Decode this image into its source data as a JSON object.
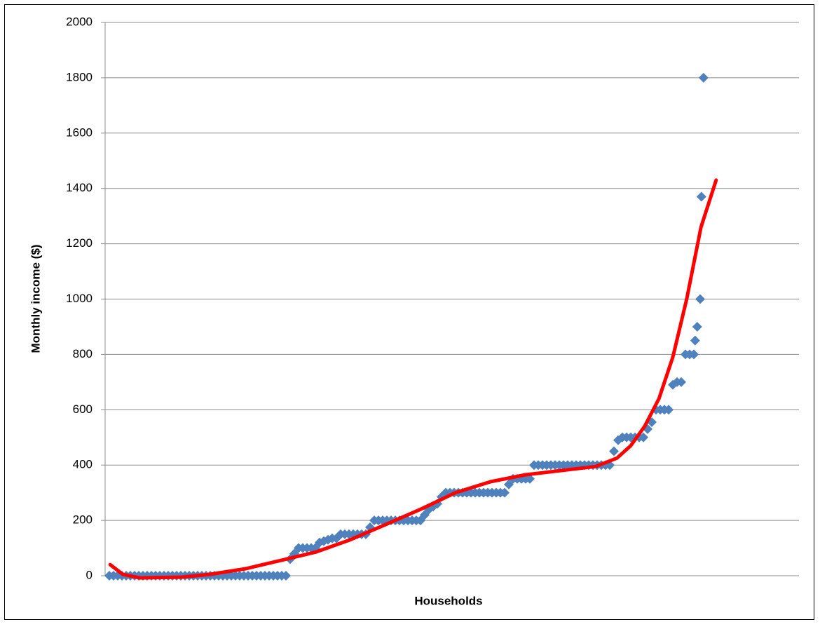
{
  "chart_data": {
    "type": "scatter",
    "ylabel": "Monthly income ($)",
    "xlabel": "Households",
    "xlim": [
      0,
      165
    ],
    "ylim": [
      0,
      2000
    ],
    "yticks": [
      0,
      200,
      400,
      600,
      800,
      1000,
      1200,
      1400,
      1600,
      1800,
      2000
    ],
    "grid": true,
    "series": [
      {
        "type": "scatter",
        "marker": "diamond",
        "color": "#4f81bd",
        "x": [
          1,
          2,
          3,
          4,
          5,
          6,
          7,
          8,
          9,
          10,
          11,
          12,
          13,
          14,
          15,
          16,
          17,
          18,
          19,
          20,
          21,
          22,
          23,
          24,
          25,
          26,
          27,
          28,
          29,
          30,
          31,
          32,
          33,
          34,
          35,
          36,
          37,
          38,
          39,
          40,
          41,
          42,
          43,
          44,
          45,
          46,
          47,
          48,
          49,
          50,
          51,
          52,
          53,
          54,
          55,
          56,
          57,
          58,
          59,
          60,
          61,
          62,
          63,
          64,
          65,
          66,
          67,
          68,
          69,
          70,
          71,
          72,
          73,
          74,
          75,
          76,
          77,
          78,
          79,
          80,
          81,
          82,
          83,
          84,
          85,
          86,
          87,
          88,
          89,
          90,
          91,
          92,
          93,
          94,
          95,
          96,
          97,
          98,
          99,
          100,
          101,
          102,
          103,
          104,
          105,
          106,
          107,
          108,
          109,
          110,
          111,
          112,
          113,
          114,
          115,
          116,
          117,
          118,
          119,
          120,
          121,
          122,
          123,
          124,
          125,
          126,
          127,
          128,
          129,
          130,
          131,
          132,
          133,
          134,
          135,
          136,
          137,
          138,
          139,
          140,
          140.3,
          140.8,
          141.5,
          141.8,
          142.3
        ],
        "values": [
          0,
          0,
          0,
          0,
          0,
          0,
          0,
          0,
          0,
          0,
          0,
          0,
          0,
          0,
          0,
          0,
          0,
          0,
          0,
          0,
          0,
          0,
          0,
          0,
          0,
          0,
          0,
          0,
          0,
          0,
          0,
          0,
          0,
          0,
          0,
          0,
          0,
          0,
          0,
          0,
          0,
          0,
          0,
          60,
          80,
          100,
          100,
          100,
          100,
          100,
          120,
          125,
          130,
          135,
          135,
          150,
          150,
          150,
          150,
          150,
          150,
          150,
          175,
          200,
          200,
          200,
          200,
          200,
          200,
          200,
          200,
          200,
          200,
          200,
          200,
          220,
          240,
          250,
          260,
          285,
          300,
          300,
          300,
          300,
          300,
          300,
          300,
          300,
          300,
          300,
          300,
          300,
          300,
          300,
          300,
          330,
          350,
          350,
          350,
          350,
          350,
          400,
          400,
          400,
          400,
          400,
          400,
          400,
          400,
          400,
          400,
          400,
          400,
          400,
          400,
          400,
          400,
          400,
          400,
          400,
          450,
          490,
          500,
          500,
          500,
          500,
          500,
          500,
          530,
          555,
          600,
          600,
          600,
          600,
          690,
          700,
          700,
          800,
          800,
          800,
          850,
          900,
          1000,
          1370,
          1800
        ]
      },
      {
        "type": "line",
        "color": "#ff0000",
        "x": [
          1.2,
          4.2,
          8.3,
          18.3,
          25,
          33.3,
          41.7,
          50,
          58.3,
          66.7,
          75,
          83.3,
          91.7,
          100,
          108.3,
          116.7,
          121.7,
          125,
          128.3,
          131.7,
          135,
          138.3,
          141.7,
          145.3
        ],
        "values": [
          40,
          5,
          -8,
          -5,
          5,
          25,
          55,
          85,
          130,
          185,
          240,
          300,
          340,
          365,
          380,
          395,
          425,
          470,
          540,
          640,
          790,
          1000,
          1260,
          1430
        ]
      }
    ]
  }
}
